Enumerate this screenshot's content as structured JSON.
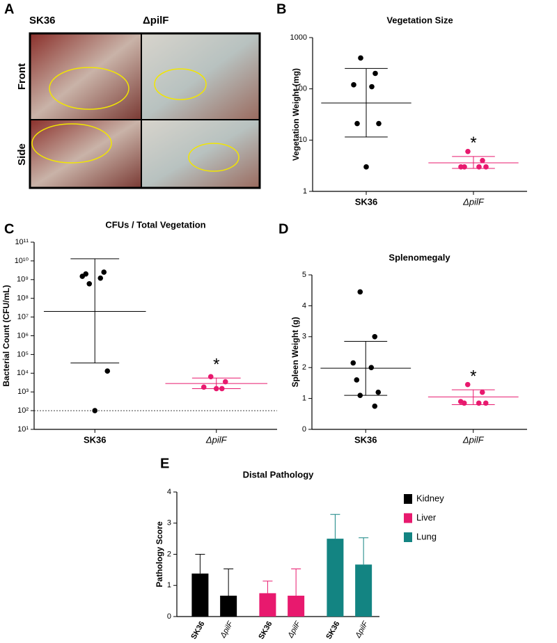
{
  "panel_a": {
    "letter": "A",
    "columns": [
      "SK36",
      "ΔpilF"
    ],
    "rows": [
      "Front",
      "Side"
    ]
  },
  "chart_data": [
    {
      "type": "strip",
      "panel": "B",
      "title": "Vegetation Size",
      "ylabel": "Vegetation  Weight (mg)",
      "log": true,
      "ylim": [
        1,
        1000
      ],
      "yticks": [
        1,
        10,
        100,
        1000
      ],
      "categories": [
        "SK36",
        "ΔpilF"
      ],
      "groups": [
        {
          "color": "#000000",
          "values": [
            400,
            200,
            120,
            110,
            21,
            21,
            3
          ],
          "mean": 53,
          "lower": 11.5,
          "upper": 250
        },
        {
          "color": "#e8196e",
          "values": [
            6,
            4,
            3,
            3,
            3,
            3
          ],
          "mean": 3.6,
          "lower": 2.8,
          "upper": 4.8,
          "annotation": "*"
        }
      ]
    },
    {
      "type": "strip",
      "panel": "C",
      "title": "CFUs / Total Vegetation",
      "ylabel": "Bacterial Count (CFU/mL)",
      "log": true,
      "ylim": [
        10,
        100000000000
      ],
      "yticks": [
        {
          "value": 10,
          "label": "10¹"
        },
        {
          "value": 100,
          "label": "10²"
        },
        {
          "value": 1000,
          "label": "10³"
        },
        {
          "value": 10000,
          "label": "10⁴"
        },
        {
          "value": 100000,
          "label": "10⁵"
        },
        {
          "value": 1000000,
          "label": "10⁶"
        },
        {
          "value": 10000000,
          "label": "10⁷"
        },
        {
          "value": 100000000,
          "label": "10⁸"
        },
        {
          "value": 1000000000,
          "label": "10⁹"
        },
        {
          "value": 10000000000,
          "label": "10¹⁰"
        },
        {
          "value": 100000000000,
          "label": "10¹¹"
        }
      ],
      "reference_line": 100,
      "categories": [
        "SK36",
        "ΔpilF"
      ],
      "groups": [
        {
          "color": "#000000",
          "values": [
            600000000,
            2500000000,
            1500000000,
            1200000000,
            2000000000,
            13000,
            100
          ],
          "mean": 20000000,
          "lower": 35000,
          "upper": 13000000000
        },
        {
          "color": "#e8196e",
          "values": [
            6500,
            3500,
            1800,
            1500,
            1500
          ],
          "mean": 2800,
          "lower": 1500,
          "upper": 5500,
          "annotation": "*"
        }
      ]
    },
    {
      "type": "strip",
      "panel": "D",
      "title": "Splenomegaly",
      "ylabel": "Spleen Weight (g)",
      "log": false,
      "ylim": [
        0,
        5
      ],
      "yticks": [
        0,
        1,
        2,
        3,
        4,
        5
      ],
      "categories": [
        "SK36",
        "ΔpilF"
      ],
      "groups": [
        {
          "color": "#000000",
          "values": [
            4.45,
            3.0,
            2.15,
            2.0,
            1.6,
            1.2,
            1.1,
            0.75
          ],
          "mean": 1.98,
          "lower": 1.1,
          "upper": 2.85
        },
        {
          "color": "#e8196e",
          "values": [
            1.45,
            1.2,
            0.9,
            0.85,
            0.85,
            0.85
          ],
          "mean": 1.05,
          "lower": 0.8,
          "upper": 1.28,
          "annotation": "*"
        }
      ]
    },
    {
      "type": "bar",
      "panel": "E",
      "title": "Distal Pathology",
      "ylabel": "Pathology Score",
      "ylim": [
        0,
        4
      ],
      "yticks": [
        0,
        1,
        2,
        3,
        4
      ],
      "categories": [
        "SK36",
        "ΔpilF"
      ],
      "series": [
        {
          "name": "Kidney",
          "color": "#000000",
          "values": [
            1.38,
            0.67
          ],
          "errors": [
            0.62,
            0.86
          ]
        },
        {
          "name": "Liver",
          "color": "#e8196e",
          "values": [
            0.75,
            0.67
          ],
          "errors": [
            0.39,
            0.86
          ]
        },
        {
          "name": "Lung",
          "color": "#138482",
          "values": [
            2.5,
            1.67
          ],
          "errors": [
            0.78,
            0.86
          ]
        }
      ]
    }
  ]
}
